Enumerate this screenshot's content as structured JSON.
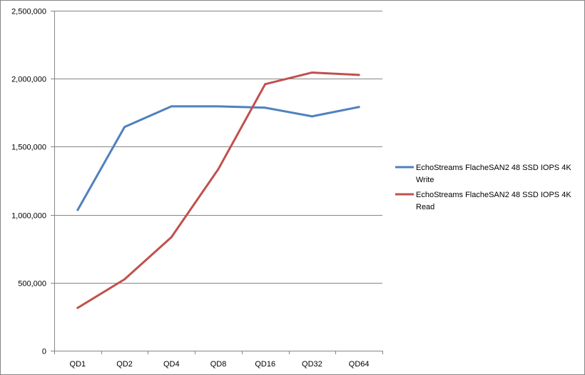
{
  "chart_data": {
    "type": "line",
    "categories": [
      "QD1",
      "QD2",
      "QD4",
      "QD8",
      "QD16",
      "QD32",
      "QD64"
    ],
    "ylim": [
      0,
      2500000
    ],
    "yticks": [
      0,
      500000,
      1000000,
      1500000,
      2000000,
      2500000
    ],
    "ytick_labels": [
      "0",
      "500,000",
      "1,000,000",
      "1,500,000",
      "2,000,000",
      "2,500,000"
    ],
    "grid": "horizontal",
    "legend_position": "right",
    "series": [
      {
        "name": "EchoStreams FlacheSAN2 48 SSD IOPS 4K Write",
        "legend_lines": [
          "EchoStreams FlacheSAN2 48 SSD IOPS 4K",
          "Write"
        ],
        "color": "#4F81BD",
        "values": [
          1035000,
          1645000,
          1797000,
          1797000,
          1787000,
          1723000,
          1792000
        ]
      },
      {
        "name": "EchoStreams FlacheSAN2 48 SSD IOPS 4K Read",
        "legend_lines": [
          "EchoStreams FlacheSAN2 48 SSD IOPS 4K",
          "Read"
        ],
        "color": "#C0504D",
        "values": [
          315000,
          525000,
          835000,
          1335000,
          1960000,
          2045000,
          2028000
        ]
      }
    ]
  }
}
